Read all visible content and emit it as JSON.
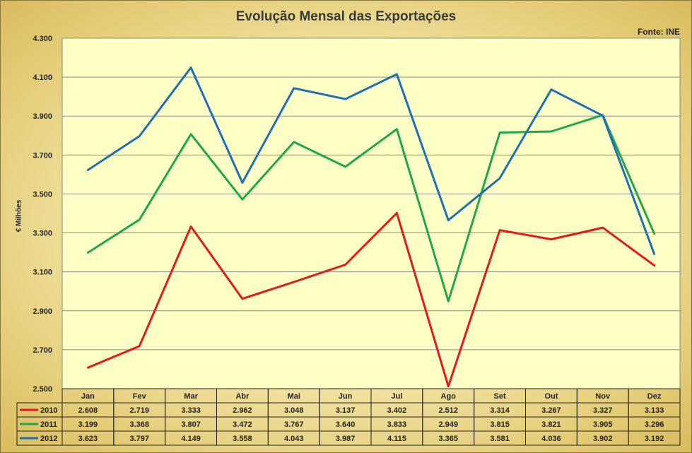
{
  "chart_data": {
    "type": "line",
    "title": "Evolução Mensal das Exportações",
    "source": "Fonte: INE",
    "ylabel": "€ Milhões",
    "xlabel": "",
    "ylim": [
      2500,
      4300
    ],
    "y_ticks": [
      "2.500",
      "2.700",
      "2.900",
      "3.100",
      "3.300",
      "3.500",
      "3.700",
      "3.900",
      "4.100",
      "4.300"
    ],
    "categories": [
      "Jan",
      "Fev",
      "Mar",
      "Abr",
      "Mai",
      "Jun",
      "Jul",
      "Ago",
      "Set",
      "Out",
      "Nov",
      "Dez"
    ],
    "grid": true,
    "legend": "data table below chart",
    "series": [
      {
        "name": "2010",
        "color": "#e31a1c",
        "values": [
          2608,
          2719,
          3333,
          2962,
          3048,
          3137,
          3402,
          2512,
          3314,
          3267,
          3327,
          3133
        ],
        "labels": [
          "2.608",
          "2.719",
          "3.333",
          "2.962",
          "3.048",
          "3.137",
          "3.402",
          "2.512",
          "3.314",
          "3.267",
          "3.327",
          "3.133"
        ]
      },
      {
        "name": "2011",
        "color": "#1fa84a",
        "values": [
          3199,
          3368,
          3807,
          3472,
          3767,
          3640,
          3833,
          2949,
          3815,
          3821,
          3905,
          3296
        ],
        "labels": [
          "3.199",
          "3.368",
          "3.807",
          "3.472",
          "3.767",
          "3.640",
          "3.833",
          "2.949",
          "3.815",
          "3.821",
          "3.905",
          "3.296"
        ]
      },
      {
        "name": "2012",
        "color": "#1f6fb4",
        "values": [
          3623,
          3797,
          4149,
          3558,
          4043,
          3987,
          4115,
          3365,
          3581,
          4036,
          3902,
          3192
        ],
        "labels": [
          "3.623",
          "3.797",
          "4.149",
          "3.558",
          "4.043",
          "3.987",
          "4.115",
          "3.365",
          "3.581",
          "4.036",
          "3.902",
          "3.192"
        ]
      }
    ]
  }
}
